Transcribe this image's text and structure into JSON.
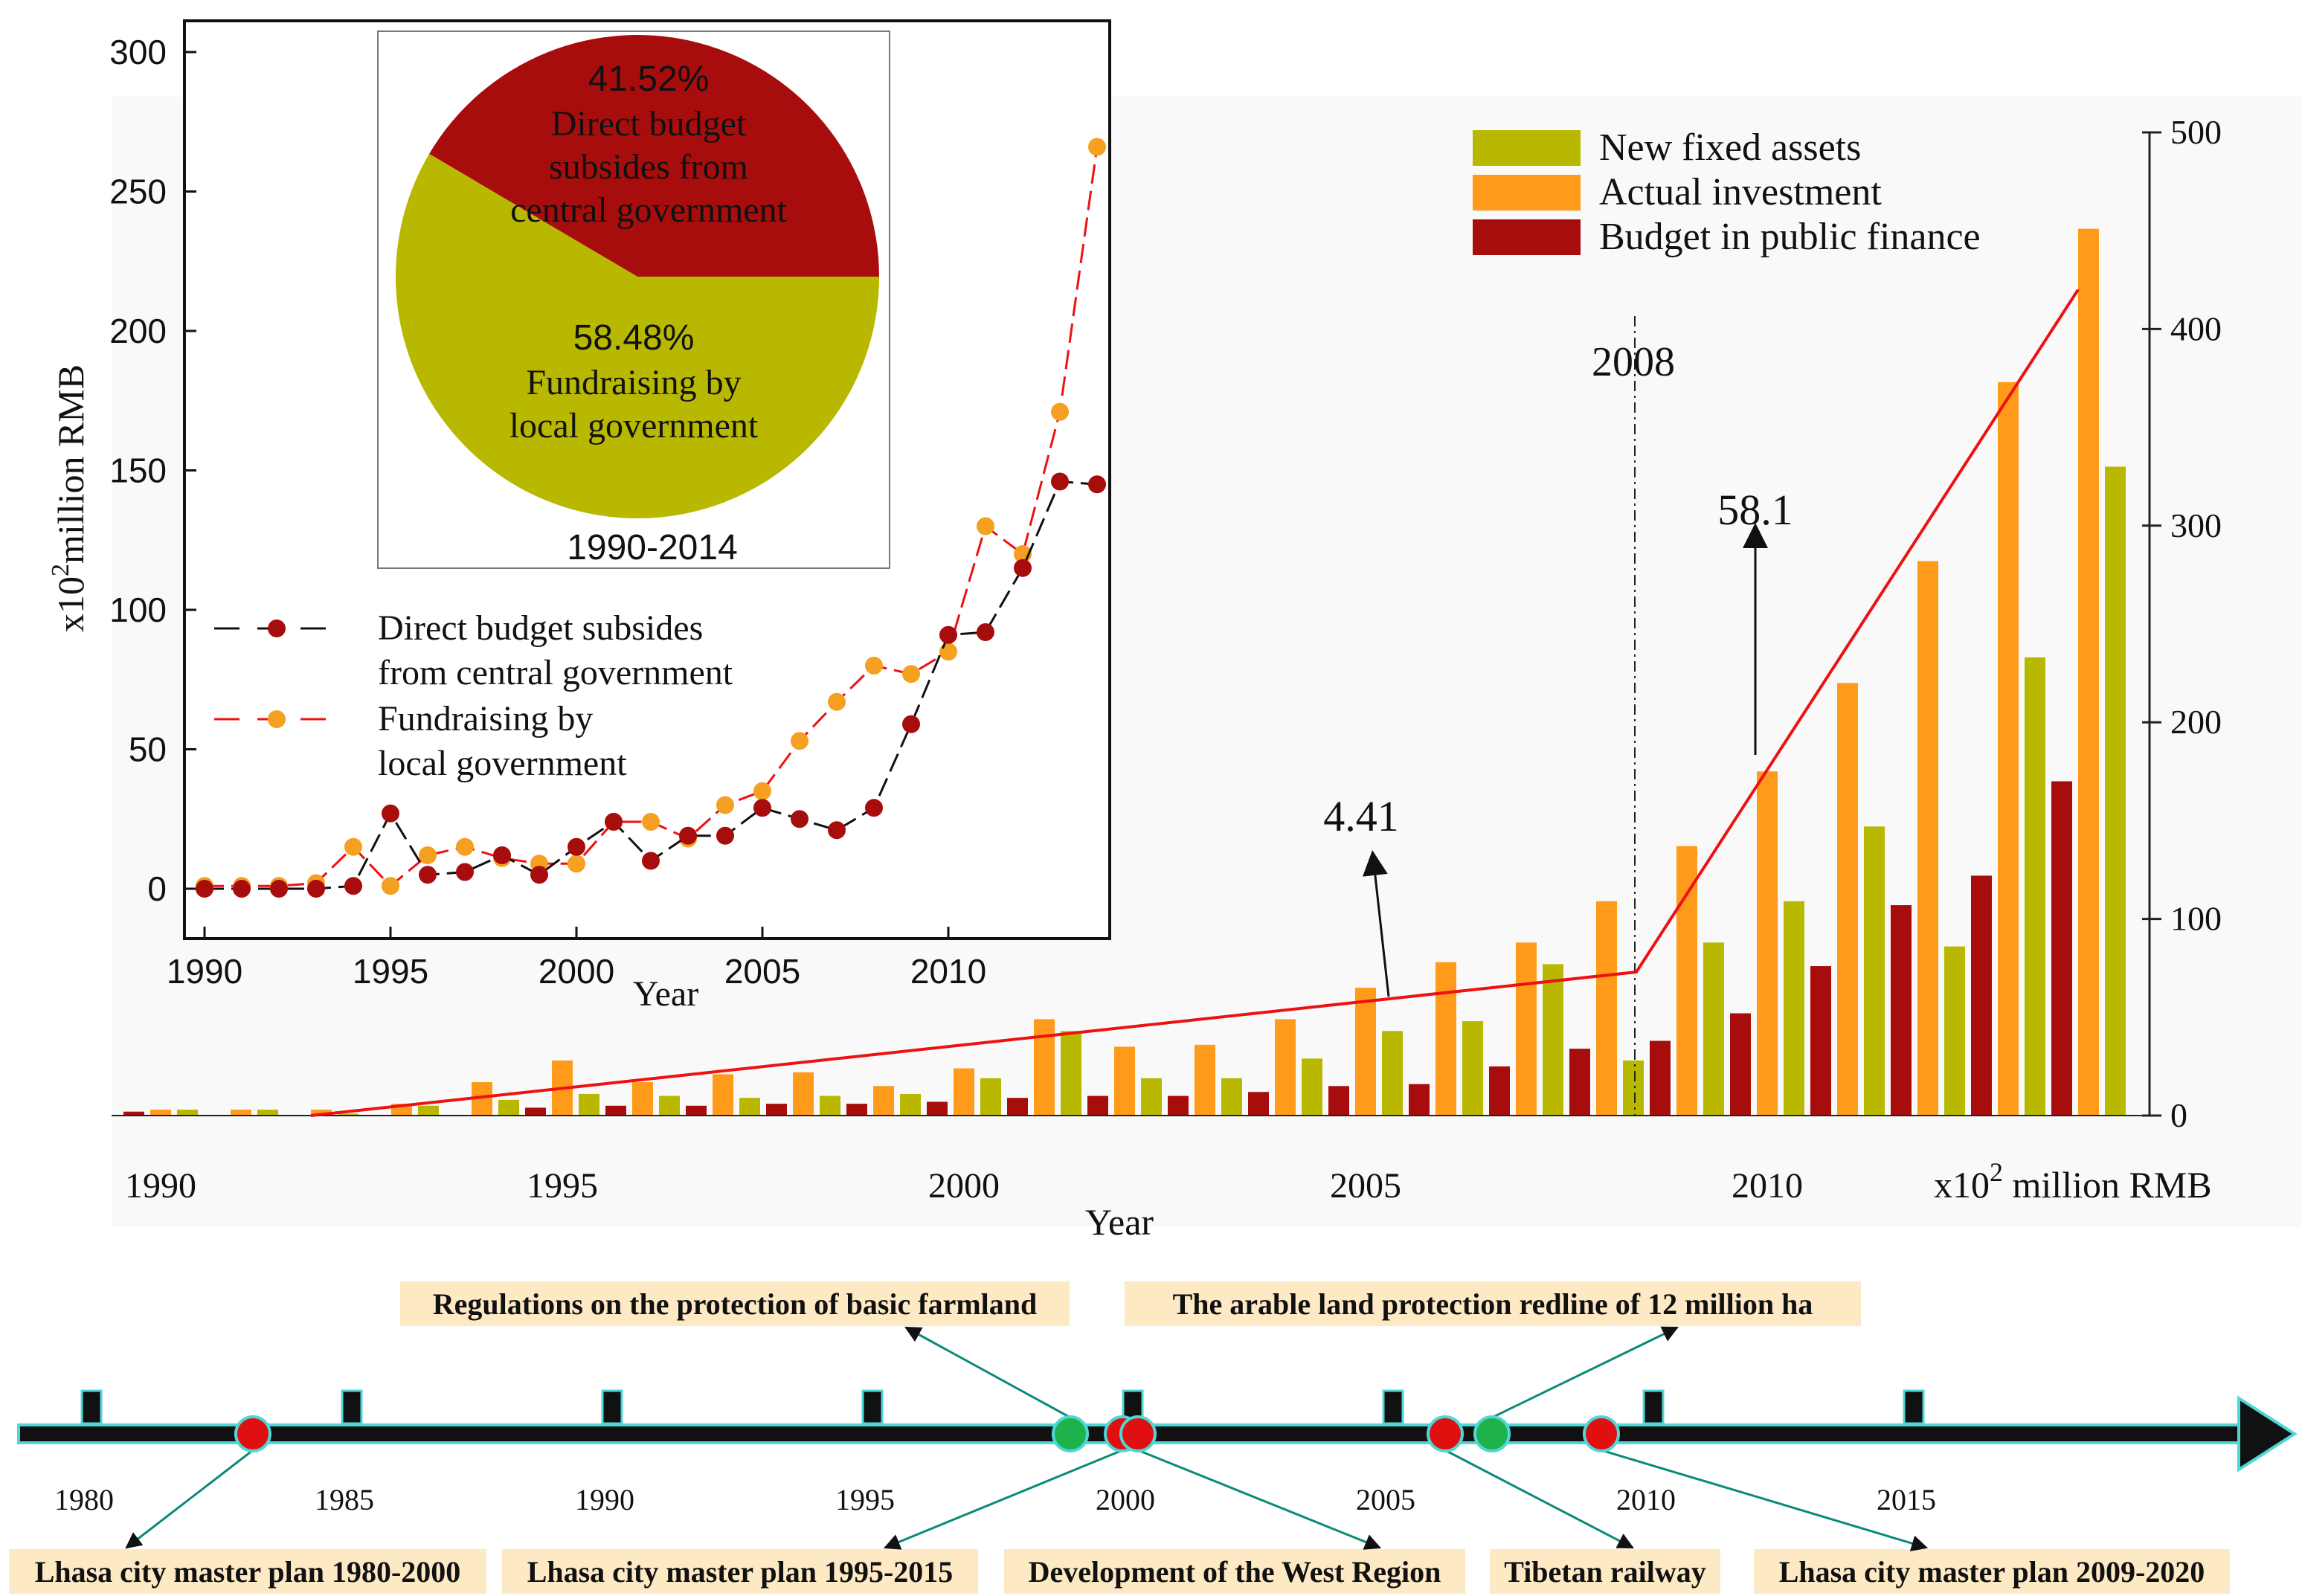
{
  "colors": {
    "fixed_assets": "#b8b800",
    "actual_investment": "#ff9a1a",
    "budget": "#a80d0d",
    "trend_line": "#ee1111",
    "pie_red": "#a80d0d",
    "pie_olive": "#b8b800",
    "line_central": "#a80d0d",
    "line_local": "#f5a020",
    "timeline_green": "#1db34a",
    "timeline_red": "#e01010",
    "timeline_teal": "#0a8a7a",
    "label_bg": "#fde9c4"
  },
  "chart_data": [
    {
      "id": "main-bar-chart",
      "type": "bar",
      "x_label": "Year",
      "y_label": "x10^2 million RMB",
      "y_label_prefix": "x10",
      "y_label_exp": "2",
      "y_label_suffix": " million RMB",
      "ylim": [
        0,
        500
      ],
      "y_ticks": [
        0,
        100,
        200,
        300,
        400,
        500
      ],
      "x_ticks": [
        1990,
        1995,
        2000,
        2005,
        2010
      ],
      "years": [
        1990,
        1991,
        1992,
        1993,
        1994,
        1995,
        1996,
        1997,
        1998,
        1999,
        2000,
        2001,
        2002,
        2003,
        2004,
        2005,
        2006,
        2007,
        2008,
        2009,
        2010,
        2011,
        2012,
        2013,
        2014
      ],
      "series": [
        {
          "name": "New fixed assets",
          "values": [
            3,
            3,
            1,
            5,
            8,
            11,
            10,
            9,
            10,
            11,
            19,
            43,
            19,
            19,
            29,
            43,
            48,
            77,
            28,
            88,
            109,
            147,
            86,
            233,
            330
          ]
        },
        {
          "name": "Actual investment",
          "values": [
            3,
            3,
            3,
            6,
            17,
            28,
            17,
            21,
            22,
            15,
            24,
            49,
            35,
            36,
            49,
            65,
            78,
            88,
            109,
            137,
            175,
            220,
            282,
            373,
            451
          ]
        },
        {
          "name": "Budget in public finance",
          "values": [
            2,
            0,
            0,
            0,
            0,
            4,
            5,
            5,
            6,
            6,
            7,
            9,
            10,
            10,
            12,
            15,
            16,
            25,
            34,
            38,
            52,
            76,
            107,
            122,
            170
          ]
        }
      ],
      "trend_line": {
        "points": [
          [
            1991.5,
            0
          ],
          [
            2008,
            73
          ],
          [
            2013.5,
            420
          ]
        ]
      },
      "trend_label_before": "4.41",
      "trend_label_after": "58.1",
      "event_line_label": "2008",
      "legend_position": "top-right"
    },
    {
      "id": "inset-line-chart",
      "type": "line",
      "x_label": "Year",
      "y_label_prefix": "x10",
      "y_label_exp": "2",
      "y_label_suffix": "million RMB",
      "ylim": [
        -5,
        300
      ],
      "xlim": [
        1989.5,
        2014.5
      ],
      "y_ticks": [
        0,
        50,
        100,
        150,
        200,
        250,
        300
      ],
      "x_ticks": [
        1990,
        1995,
        2000,
        2005,
        2010
      ],
      "x": [
        1990,
        1991,
        1992,
        1993,
        1994,
        1995,
        1996,
        1997,
        1998,
        1999,
        2000,
        2001,
        2002,
        2003,
        2004,
        2005,
        2006,
        2007,
        2008,
        2009,
        2010,
        2011,
        2012,
        2013,
        2014
      ],
      "series": [
        {
          "name": "Direct budget subsides from central government",
          "legend_lines": [
            "Direct budget subsides",
            "from central government"
          ],
          "values": [
            0,
            0,
            0,
            0,
            1,
            27,
            5,
            6,
            12,
            5,
            15,
            24,
            10,
            19,
            19,
            29,
            25,
            21,
            29,
            59,
            91,
            92,
            115,
            146,
            145
          ]
        },
        {
          "name": "Fundraising by local government",
          "legend_lines": [
            "Fundraising by",
            "local government"
          ],
          "values": [
            1,
            1,
            1,
            2,
            15,
            1,
            12,
            15,
            11,
            9,
            9,
            24,
            24,
            18,
            30,
            35,
            53,
            67,
            80,
            77,
            85,
            130,
            120,
            171,
            266
          ]
        }
      ]
    },
    {
      "id": "inset-pie-chart",
      "type": "pie",
      "period": "1990-2014",
      "slices": [
        {
          "name": "Direct budget subsides from central government",
          "pct_label": "41.52%",
          "value": 41.52,
          "text_lines": [
            "Direct budget",
            "subsides from",
            "central government"
          ]
        },
        {
          "name": "Fundraising by local government",
          "pct_label": "58.48%",
          "value": 58.48,
          "text_lines": [
            "Fundraising by",
            "local government"
          ]
        }
      ]
    },
    {
      "id": "policy-timeline",
      "type": "timeline",
      "ticks": [
        1980,
        1985,
        1990,
        1995,
        2000,
        2005,
        2010,
        2015
      ],
      "xlim": [
        1980,
        2020
      ],
      "events_top": [
        {
          "label": "Regulations on the protection of basic farmland",
          "year": 1998.8,
          "marker": "green"
        },
        {
          "label": "The arable land protection redline of 12 million ha",
          "year": 2006.9,
          "marker": "green"
        }
      ],
      "events_bottom": [
        {
          "label": "Lhasa city master plan 1980-2000",
          "year": 1983.1,
          "marker": "red"
        },
        {
          "label": "Lhasa city master plan 1995-2015",
          "year": 1999.8,
          "marker": "red"
        },
        {
          "label": "Development of the West Region",
          "year": 2000.1,
          "marker": "red"
        },
        {
          "label": "Tibetan railway",
          "year": 2006.0,
          "marker": "red"
        },
        {
          "label": "Lhasa city master plan 2009-2020",
          "year": 2009.0,
          "marker": "red"
        }
      ]
    }
  ]
}
